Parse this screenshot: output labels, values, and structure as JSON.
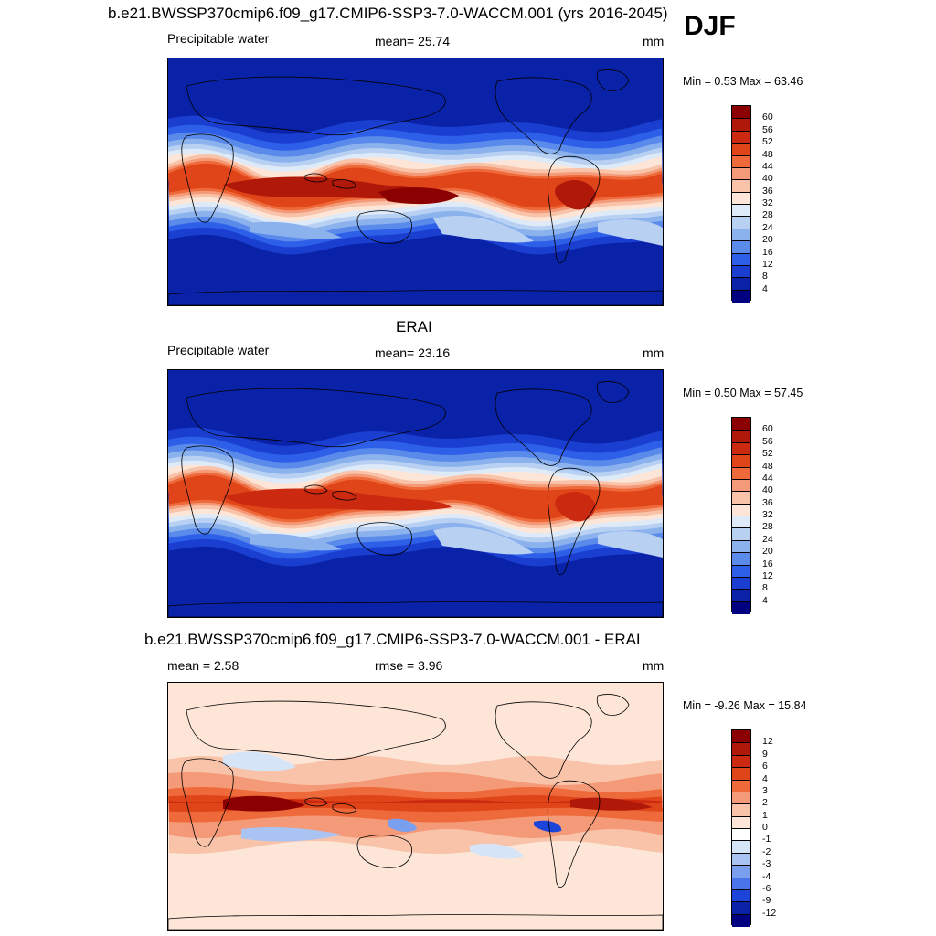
{
  "season": "DJF",
  "panels": [
    {
      "title": "b.e21.BWSSP370cmip6.f09_g17.CMIP6-SSP3-7.0-WACCM.001 (yrs 2016-2045)",
      "left_label": "Precipitable water",
      "center_label": "mean=  25.74",
      "units": "mm",
      "minmax": "Min =   0.53 Max =  63.46",
      "colorbar_labels": [
        "60",
        "56",
        "52",
        "48",
        "44",
        "40",
        "36",
        "32",
        "28",
        "24",
        "20",
        "16",
        "12",
        "8",
        "4"
      ],
      "colorbar_colors": [
        "#8b0000",
        "#b0180a",
        "#cc2a10",
        "#e0451a",
        "#ee6a3a",
        "#f49a78",
        "#f8c3a8",
        "#fde6d8",
        "#deeaf7",
        "#b8d1f3",
        "#8cb2ee",
        "#5a8aea",
        "#2e5fe8",
        "#1a3fd0",
        "#0a22a8",
        "#000080"
      ],
      "map_style": "model"
    },
    {
      "title": "ERAI",
      "left_label": "Precipitable water",
      "center_label": "mean=  23.16",
      "units": "mm",
      "minmax": "Min =   0.50 Max =  57.45",
      "colorbar_labels": [
        "60",
        "56",
        "52",
        "48",
        "44",
        "40",
        "36",
        "32",
        "28",
        "24",
        "20",
        "16",
        "12",
        "8",
        "4"
      ],
      "colorbar_colors": [
        "#8b0000",
        "#b0180a",
        "#cc2a10",
        "#e0451a",
        "#ee6a3a",
        "#f49a78",
        "#f8c3a8",
        "#fde6d8",
        "#deeaf7",
        "#b8d1f3",
        "#8cb2ee",
        "#5a8aea",
        "#2e5fe8",
        "#1a3fd0",
        "#0a22a8",
        "#000080"
      ],
      "map_style": "obs"
    },
    {
      "title": "b.e21.BWSSP370cmip6.f09_g17.CMIP6-SSP3-7.0-WACCM.001 - ERAI",
      "left_label": "mean =   2.58",
      "center_label": "rmse =   3.96",
      "units": "mm",
      "minmax": "Min =  -9.26 Max =  15.84",
      "colorbar_labels": [
        "12",
        "9",
        "6",
        "4",
        "3",
        "2",
        "1",
        "0",
        "-1",
        "-2",
        "-3",
        "-4",
        "-6",
        "-9",
        "-12"
      ],
      "colorbar_colors": [
        "#8b0000",
        "#b0180a",
        "#cc2a10",
        "#e0451a",
        "#ee6a3a",
        "#f49a78",
        "#f8c3a8",
        "#fde6d8",
        "#ffffff",
        "#d6e4f8",
        "#a9c4f2",
        "#7a9fee",
        "#4a74ea",
        "#1c44d8",
        "#0a22a8",
        "#000080"
      ],
      "map_style": "diff"
    }
  ]
}
